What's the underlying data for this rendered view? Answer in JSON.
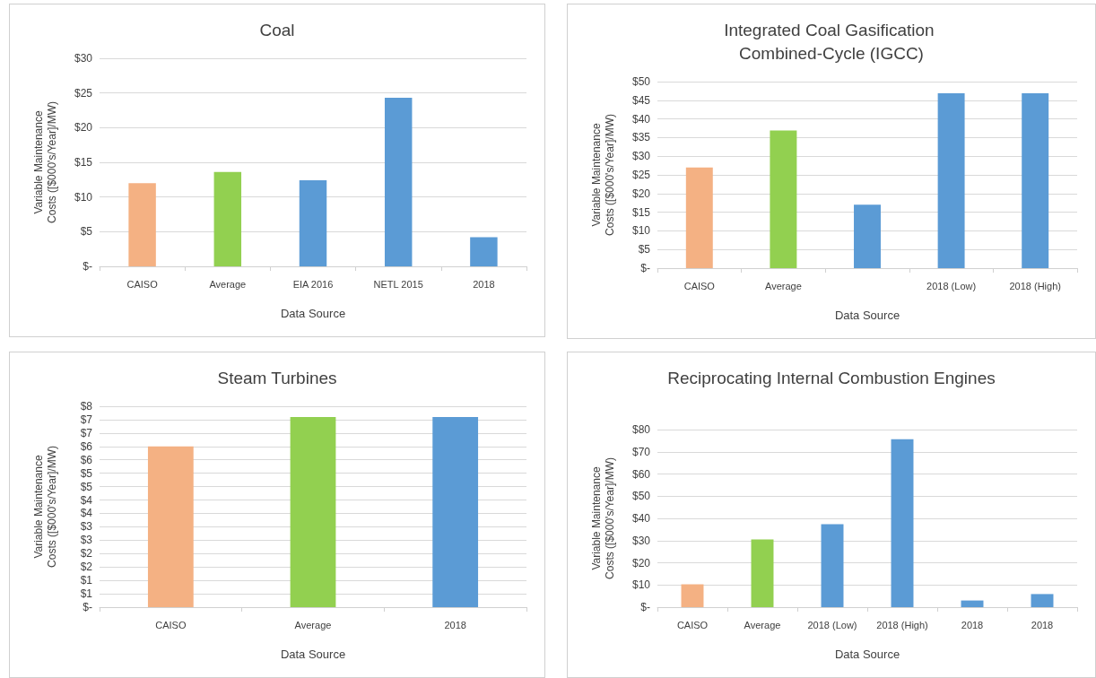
{
  "chart_data": [
    {
      "type": "bar",
      "title": "Coal",
      "xlabel": "Data Source",
      "ylabel": "Variable Maintenance Costs ([$000's/Year]/MW)",
      "categories": [
        "CAISO",
        "Average",
        "EIA 2016",
        "NETL 2015",
        "2018"
      ],
      "values": [
        12,
        13.6,
        12.4,
        24.3,
        4.2
      ],
      "colors": [
        "#f4b183",
        "#92d050",
        "#5b9bd5",
        "#5b9bd5",
        "#5b9bd5"
      ],
      "ylim": [
        0,
        30
      ],
      "yticks": [
        {
          "value": 0,
          "label": "$-"
        },
        {
          "value": 5,
          "label": "$5"
        },
        {
          "value": 10,
          "label": "$10"
        },
        {
          "value": 15,
          "label": "$15"
        },
        {
          "value": 20,
          "label": "$20"
        },
        {
          "value": 25,
          "label": "$25"
        },
        {
          "value": 30,
          "label": "$30"
        }
      ],
      "grid": "y"
    },
    {
      "type": "bar",
      "title": "Integrated Coal Gasification Combined-Cycle (IGCC)",
      "xlabel": "Data Source",
      "ylabel": "Variable Maintenance Costs ([$000's/Year]/MW)",
      "categories": [
        "CAISO",
        "Average",
        null,
        "2018 (Low)",
        "2018 (High)"
      ],
      "values": [
        27,
        36.9,
        17,
        46.9,
        46.9
      ],
      "colors": [
        "#f4b183",
        "#92d050",
        "#5b9bd5",
        "#5b9bd5",
        "#5b9bd5"
      ],
      "ylim": [
        0,
        50
      ],
      "yticks": [
        {
          "value": 0,
          "label": "$-"
        },
        {
          "value": 5,
          "label": "$5"
        },
        {
          "value": 10,
          "label": "$10"
        },
        {
          "value": 15,
          "label": "$15"
        },
        {
          "value": 20,
          "label": "$20"
        },
        {
          "value": 25,
          "label": "$25"
        },
        {
          "value": 30,
          "label": "$30"
        },
        {
          "value": 35,
          "label": "$35"
        },
        {
          "value": 40,
          "label": "$40"
        },
        {
          "value": 45,
          "label": "$45"
        },
        {
          "value": 50,
          "label": "$50"
        }
      ],
      "grid": "y"
    },
    {
      "type": "bar",
      "title": "Steam Turbines",
      "xlabel": "Data Source",
      "ylabel": "Variable Maintenance Costs ([$000's/Year]/MW)",
      "categories": [
        "CAISO",
        "Average",
        "2018"
      ],
      "values": [
        6.0,
        7.1,
        7.1
      ],
      "colors": [
        "#f4b183",
        "#92d050",
        "#5b9bd5"
      ],
      "ylim": [
        0,
        7.5
      ],
      "yticks": [
        {
          "value": 0,
          "label": "$-"
        },
        {
          "value": 0.5,
          "label": "$1"
        },
        {
          "value": 1,
          "label": "$1"
        },
        {
          "value": 1.5,
          "label": "$2"
        },
        {
          "value": 2,
          "label": "$2"
        },
        {
          "value": 2.5,
          "label": "$3"
        },
        {
          "value": 3,
          "label": "$3"
        },
        {
          "value": 3.5,
          "label": "$4"
        },
        {
          "value": 4,
          "label": "$4"
        },
        {
          "value": 4.5,
          "label": "$5"
        },
        {
          "value": 5,
          "label": "$5"
        },
        {
          "value": 5.5,
          "label": "$6"
        },
        {
          "value": 6,
          "label": "$6"
        },
        {
          "value": 6.5,
          "label": "$7"
        },
        {
          "value": 7,
          "label": "$7"
        },
        {
          "value": 7.5,
          "label": "$8"
        }
      ],
      "grid": "y"
    },
    {
      "type": "bar",
      "title": "Reciprocating Internal Combustion Engines",
      "xlabel": "Data Source",
      "ylabel": "Variable Maintenance Costs ([$000's/Year]/MW)",
      "categories": [
        "CAISO",
        "Average",
        "2018 (Low)",
        "2018 (High)",
        "2018",
        "2018"
      ],
      "values": [
        10.3,
        30.5,
        37.4,
        75.7,
        3.0,
        5.9
      ],
      "colors": [
        "#f4b183",
        "#92d050",
        "#5b9bd5",
        "#5b9bd5",
        "#5b9bd5",
        "#5b9bd5"
      ],
      "ylim": [
        0,
        80
      ],
      "yticks": [
        {
          "value": 0,
          "label": "$-"
        },
        {
          "value": 10,
          "label": "$10"
        },
        {
          "value": 20,
          "label": "$20"
        },
        {
          "value": 30,
          "label": "$30"
        },
        {
          "value": 40,
          "label": "$40"
        },
        {
          "value": 50,
          "label": "$50"
        },
        {
          "value": 60,
          "label": "$60"
        },
        {
          "value": 70,
          "label": "$70"
        },
        {
          "value": 80,
          "label": "$80"
        }
      ],
      "grid": "y"
    }
  ]
}
